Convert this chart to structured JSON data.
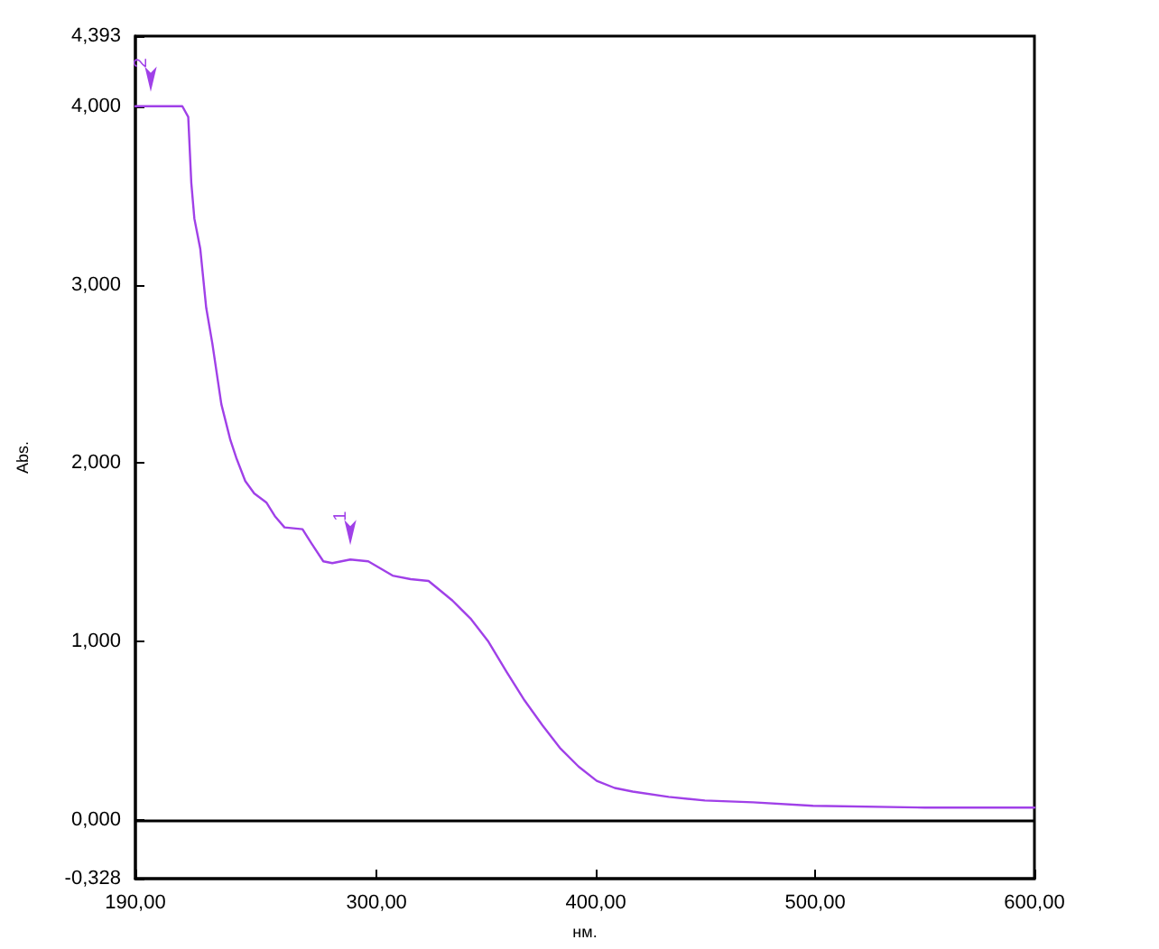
{
  "chart_data": {
    "type": "line",
    "xlabel": "нм.",
    "ylabel": "Abs.",
    "x": [
      190,
      197,
      211.4,
      214.1,
      215.5,
      216.9,
      219.6,
      222.3,
      225.1,
      229.2,
      233.3,
      236,
      240.1,
      244.2,
      249.7,
      253.8,
      258,
      266.2,
      270.3,
      275.7,
      279.8,
      288,
      296.2,
      307.3,
      315.5,
      323.7,
      334.6,
      342.8,
      351,
      359.3,
      367.5,
      375.7,
      383.9,
      392.1,
      400.4,
      408.6,
      416.8,
      433.2,
      449.7,
      471.6,
      499,
      550,
      600
    ],
    "series": [
      {
        "color": "#a040e8",
        "values": [
          4.0,
          4.0,
          4.0,
          3.94,
          3.57,
          3.37,
          3.2,
          2.87,
          2.67,
          2.33,
          2.13,
          2.03,
          1.9,
          1.83,
          1.78,
          1.7,
          1.64,
          1.63,
          1.55,
          1.45,
          1.44,
          1.46,
          1.45,
          1.37,
          1.35,
          1.34,
          1.23,
          1.13,
          1.0,
          0.83,
          0.67,
          0.53,
          0.4,
          0.3,
          0.22,
          0.18,
          0.16,
          0.13,
          0.11,
          0.1,
          0.08,
          0.07,
          0.07
        ]
      }
    ],
    "annotations": [
      {
        "text": "1",
        "x": 288,
        "y": 1.46
      },
      {
        "text": "2",
        "x": 197,
        "y": 4.0
      }
    ],
    "xlim": [
      190,
      600
    ],
    "xticks": [
      {
        "value": 190,
        "label": "190,00"
      },
      {
        "value": 300,
        "label": "300,00"
      },
      {
        "value": 400,
        "label": "400,00"
      },
      {
        "value": 500,
        "label": "500,00"
      },
      {
        "value": 600,
        "label": "600,00"
      }
    ],
    "ylim": [
      -0.328,
      4.393
    ],
    "yticks": [
      {
        "value": -0.328,
        "label": "-0,328"
      },
      {
        "value": 0,
        "label": "0,000"
      },
      {
        "value": 1,
        "label": "1,000"
      },
      {
        "value": 2,
        "label": "2,000"
      },
      {
        "value": 3,
        "label": "3,000"
      },
      {
        "value": 4,
        "label": "4,000"
      },
      {
        "value": 4.393,
        "label": "4,393"
      }
    ],
    "ref_lines": [
      {
        "axis": "y",
        "value": 0,
        "color": "#000000"
      }
    ],
    "grid": false,
    "marker": "none",
    "line_style": "solid"
  }
}
